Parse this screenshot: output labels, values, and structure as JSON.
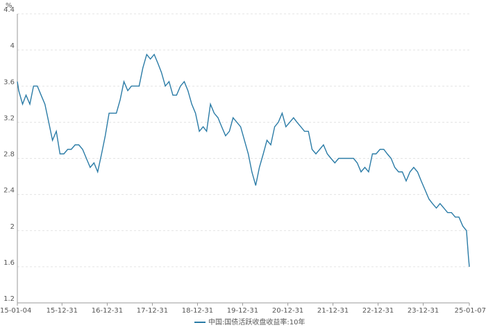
{
  "chart_data": {
    "type": "line",
    "y_label": "%",
    "x": [
      "15-01-04",
      "15-01-15",
      "15-02-15",
      "15-03-15",
      "15-04-15",
      "15-05-15",
      "15-06-15",
      "15-07-15",
      "15-08-15",
      "15-09-15",
      "15-10-15",
      "15-11-15",
      "15-12-15",
      "16-01-15",
      "16-02-15",
      "16-03-15",
      "16-04-15",
      "16-05-15",
      "16-06-15",
      "16-07-15",
      "16-08-15",
      "16-09-15",
      "16-10-15",
      "16-11-15",
      "16-12-15",
      "17-01-15",
      "17-02-15",
      "17-03-15",
      "17-04-15",
      "17-05-15",
      "17-06-15",
      "17-07-15",
      "17-08-15",
      "17-09-15",
      "17-10-15",
      "17-11-15",
      "17-12-15",
      "18-01-15",
      "18-02-15",
      "18-03-15",
      "18-04-15",
      "18-05-15",
      "18-06-15",
      "18-07-15",
      "18-08-15",
      "18-09-15",
      "18-10-15",
      "18-11-15",
      "18-12-15",
      "19-01-15",
      "19-02-15",
      "19-03-15",
      "19-04-15",
      "19-05-15",
      "19-06-15",
      "19-07-15",
      "19-08-15",
      "19-09-15",
      "19-10-15",
      "19-11-15",
      "19-12-15",
      "20-01-15",
      "20-02-15",
      "20-03-15",
      "20-04-15",
      "20-05-15",
      "20-06-15",
      "20-07-15",
      "20-08-15",
      "20-09-15",
      "20-10-15",
      "20-11-15",
      "20-12-15",
      "21-01-15",
      "21-02-15",
      "21-03-15",
      "21-04-15",
      "21-05-15",
      "21-06-15",
      "21-07-15",
      "21-08-15",
      "21-09-15",
      "21-10-15",
      "21-11-15",
      "21-12-15",
      "22-01-15",
      "22-02-15",
      "22-03-15",
      "22-04-15",
      "22-05-15",
      "22-06-15",
      "22-07-15",
      "22-08-15",
      "22-09-15",
      "22-10-15",
      "22-11-15",
      "22-12-15",
      "23-01-15",
      "23-02-15",
      "23-03-15",
      "23-04-15",
      "23-05-15",
      "23-06-15",
      "23-07-15",
      "23-08-15",
      "23-09-15",
      "23-10-15",
      "23-11-15",
      "23-12-15",
      "24-01-15",
      "24-02-15",
      "24-03-15",
      "24-04-15",
      "24-05-15",
      "24-06-15",
      "24-07-15",
      "24-08-15",
      "24-09-15",
      "24-10-15",
      "24-11-15",
      "24-12-15",
      "24-12-31",
      "25-01-07"
    ],
    "series": [
      {
        "name": "中国:国债活跃收盘收益率:10年",
        "color": "#2a7ba6",
        "values": [
          3.65,
          3.55,
          3.4,
          3.5,
          3.4,
          3.6,
          3.6,
          3.5,
          3.4,
          3.2,
          3.0,
          3.1,
          2.85,
          2.85,
          2.9,
          2.9,
          2.95,
          2.95,
          2.9,
          2.8,
          2.7,
          2.75,
          2.65,
          2.85,
          3.05,
          3.3,
          3.3,
          3.3,
          3.45,
          3.65,
          3.55,
          3.6,
          3.6,
          3.6,
          3.8,
          3.95,
          3.9,
          3.95,
          3.85,
          3.75,
          3.6,
          3.65,
          3.5,
          3.5,
          3.6,
          3.65,
          3.55,
          3.4,
          3.3,
          3.1,
          3.15,
          3.1,
          3.4,
          3.3,
          3.25,
          3.15,
          3.05,
          3.1,
          3.25,
          3.2,
          3.15,
          3.0,
          2.85,
          2.65,
          2.5,
          2.7,
          2.85,
          3.0,
          2.95,
          3.15,
          3.2,
          3.3,
          3.15,
          3.2,
          3.25,
          3.2,
          3.15,
          3.1,
          3.1,
          2.9,
          2.85,
          2.9,
          2.95,
          2.85,
          2.8,
          2.75,
          2.8,
          2.8,
          2.8,
          2.8,
          2.8,
          2.75,
          2.65,
          2.7,
          2.65,
          2.85,
          2.85,
          2.9,
          2.9,
          2.85,
          2.8,
          2.7,
          2.65,
          2.65,
          2.55,
          2.65,
          2.7,
          2.65,
          2.55,
          2.45,
          2.35,
          2.3,
          2.25,
          2.3,
          2.25,
          2.2,
          2.2,
          2.15,
          2.15,
          2.05,
          2.0,
          1.7,
          1.6
        ]
      }
    ],
    "ylim": [
      1.2,
      4.4
    ],
    "yticks": [
      1.2,
      1.6,
      2,
      2.4,
      2.8,
      3.2,
      3.6,
      4,
      4.4
    ],
    "xlim": [
      "15-01-04",
      "25-01-07"
    ],
    "xticks": [
      "15-01-04",
      "15-12-31",
      "16-12-31",
      "17-12-31",
      "18-12-31",
      "19-12-31",
      "20-12-31",
      "21-12-31",
      "22-12-31",
      "23-12-31",
      "25-01-07"
    ],
    "grid": true
  }
}
